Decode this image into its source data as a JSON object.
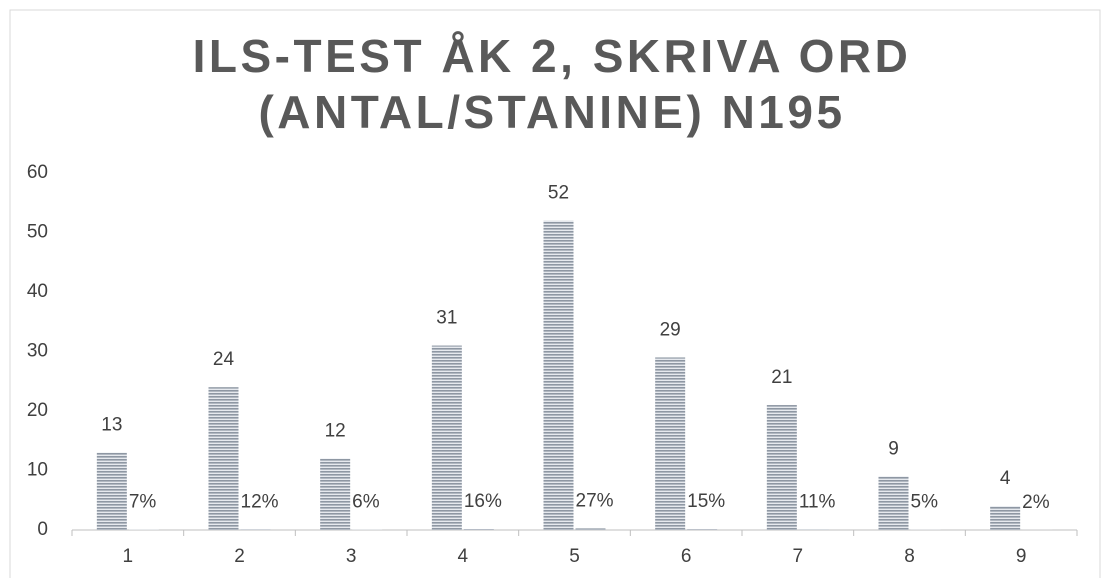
{
  "chart_data": {
    "type": "bar",
    "title": "ILS-TEST ÅK 2, SKRIVA ORD (ANTAL/STANINE) N195",
    "categories": [
      "1",
      "2",
      "3",
      "4",
      "5",
      "6",
      "7",
      "8",
      "9"
    ],
    "series": [
      {
        "color": "#a6aeb8",
        "values": [
          13,
          24,
          12,
          31,
          52,
          29,
          21,
          9,
          4
        ]
      },
      {
        "color": "#a6aeb8",
        "values": [
          0.07,
          0.12,
          0.06,
          0.16,
          0.27,
          0.15,
          0.11,
          0.05,
          0.02
        ],
        "value_labels": [
          "7%",
          "12%",
          "6%",
          "16%",
          "27%",
          "15%",
          "11%",
          "5%",
          "2%"
        ]
      }
    ],
    "ylim": [
      0,
      60
    ],
    "yticks": [
      0,
      10,
      20,
      30,
      40,
      50,
      60
    ],
    "grid": false
  }
}
